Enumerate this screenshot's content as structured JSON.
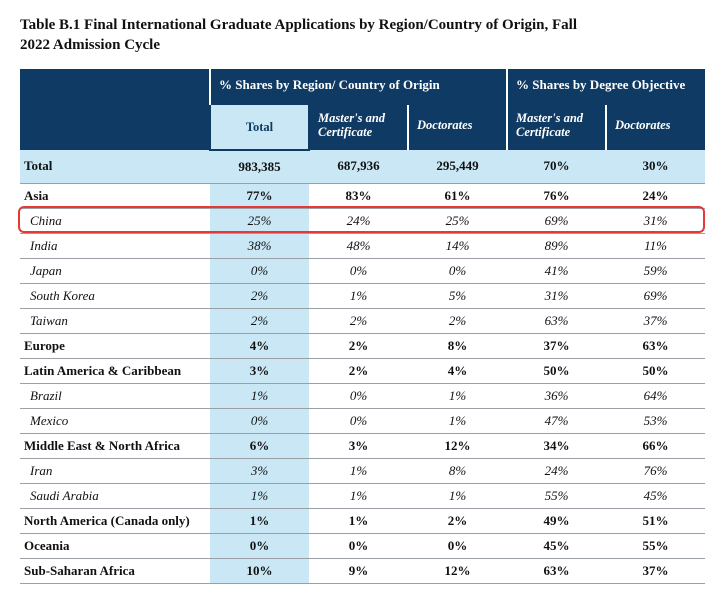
{
  "title": "Table B.1 Final International Graduate Applications by Region/Country of Origin, Fall 2022 Admission Cycle",
  "header": {
    "group_origin": "% Shares by Region/ Country of Origin",
    "group_degree": "% Shares by Degree Objective",
    "total": "Total",
    "masters": "Master's and Certificate",
    "doctorates": "Doctorates"
  },
  "total_row": {
    "label": "Total",
    "total": "983,385",
    "o_masters": "687,936",
    "o_doct": "295,449",
    "d_masters": "70%",
    "d_doct": "30%"
  },
  "rows": [
    {
      "style": "bold",
      "label": "Asia",
      "total": "77%",
      "o_masters": "83%",
      "o_doct": "61%",
      "d_masters": "76%",
      "d_doct": "24%"
    },
    {
      "style": "italic",
      "label": "China",
      "highlight": true,
      "total": "25%",
      "o_masters": "24%",
      "o_doct": "25%",
      "d_masters": "69%",
      "d_doct": "31%"
    },
    {
      "style": "italic",
      "label": "India",
      "total": "38%",
      "o_masters": "48%",
      "o_doct": "14%",
      "d_masters": "89%",
      "d_doct": "11%"
    },
    {
      "style": "italic",
      "label": "Japan",
      "total": "0%",
      "o_masters": "0%",
      "o_doct": "0%",
      "d_masters": "41%",
      "d_doct": "59%"
    },
    {
      "style": "italic",
      "label": "South Korea",
      "total": "2%",
      "o_masters": "1%",
      "o_doct": "5%",
      "d_masters": "31%",
      "d_doct": "69%"
    },
    {
      "style": "italic",
      "label": "Taiwan",
      "total": "2%",
      "o_masters": "2%",
      "o_doct": "2%",
      "d_masters": "63%",
      "d_doct": "37%"
    },
    {
      "style": "bold",
      "label": "Europe",
      "total": "4%",
      "o_masters": "2%",
      "o_doct": "8%",
      "d_masters": "37%",
      "d_doct": "63%"
    },
    {
      "style": "bold",
      "label": "Latin America & Caribbean",
      "total": "3%",
      "o_masters": "2%",
      "o_doct": "4%",
      "d_masters": "50%",
      "d_doct": "50%"
    },
    {
      "style": "italic",
      "label": "Brazil",
      "total": "1%",
      "o_masters": "0%",
      "o_doct": "1%",
      "d_masters": "36%",
      "d_doct": "64%"
    },
    {
      "style": "italic",
      "label": "Mexico",
      "total": "0%",
      "o_masters": "0%",
      "o_doct": "1%",
      "d_masters": "47%",
      "d_doct": "53%"
    },
    {
      "style": "bold",
      "label": "Middle East & North Africa",
      "total": "6%",
      "o_masters": "3%",
      "o_doct": "12%",
      "d_masters": "34%",
      "d_doct": "66%"
    },
    {
      "style": "italic",
      "label": "Iran",
      "total": "3%",
      "o_masters": "1%",
      "o_doct": "8%",
      "d_masters": "24%",
      "d_doct": "76%"
    },
    {
      "style": "italic",
      "label": "Saudi Arabia",
      "total": "1%",
      "o_masters": "1%",
      "o_doct": "1%",
      "d_masters": "55%",
      "d_doct": "45%"
    },
    {
      "style": "bold",
      "label": "North America (Canada only)",
      "total": "1%",
      "o_masters": "1%",
      "o_doct": "2%",
      "d_masters": "49%",
      "d_doct": "51%"
    },
    {
      "style": "bold",
      "label": "Oceania",
      "total": "0%",
      "o_masters": "0%",
      "o_doct": "0%",
      "d_masters": "45%",
      "d_doct": "55%"
    },
    {
      "style": "bold",
      "label": "Sub-Saharan Africa",
      "total": "10%",
      "o_masters": "9%",
      "o_doct": "12%",
      "d_masters": "63%",
      "d_doct": "37%"
    }
  ],
  "highlight_color": "#e53935"
}
